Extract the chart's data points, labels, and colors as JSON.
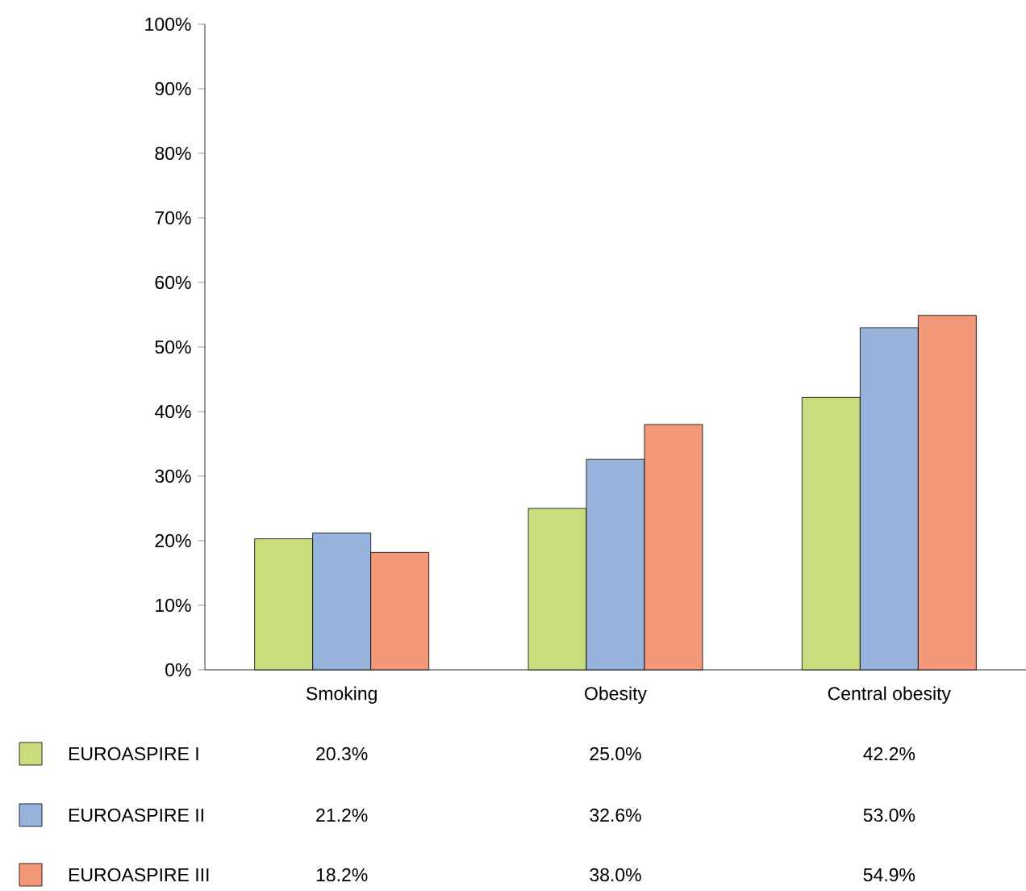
{
  "chart_data": {
    "type": "bar",
    "categories": [
      "Smoking",
      "Obesity",
      "Central obesity"
    ],
    "series": [
      {
        "name": "EUROASPIRE I",
        "color": "#c9dc7e",
        "values": [
          20.3,
          25.0,
          42.2
        ],
        "value_labels": [
          "20.3%",
          "25.0%",
          "42.2%"
        ]
      },
      {
        "name": "EUROASPIRE II",
        "color": "#98b3dc",
        "values": [
          21.2,
          32.6,
          53.0
        ],
        "value_labels": [
          "21.2%",
          "32.6%",
          "53.0%"
        ]
      },
      {
        "name": "EUROASPIRE III",
        "color": "#f4987a",
        "values": [
          18.2,
          38.0,
          54.9
        ],
        "value_labels": [
          "18.2%",
          "38.0%",
          "54.9%"
        ]
      }
    ],
    "ylim": [
      0,
      100
    ],
    "yticks": [
      {
        "value": 0,
        "label": "0%"
      },
      {
        "value": 10,
        "label": "10%"
      },
      {
        "value": 20,
        "label": "20%"
      },
      {
        "value": 30,
        "label": "30%"
      },
      {
        "value": 40,
        "label": "40%"
      },
      {
        "value": 50,
        "label": "50%"
      },
      {
        "value": 60,
        "label": "60%"
      },
      {
        "value": 70,
        "label": "70%"
      },
      {
        "value": 80,
        "label": "80%"
      },
      {
        "value": 90,
        "label": "90%"
      },
      {
        "value": 100,
        "label": "100%"
      }
    ],
    "legend": "bottom"
  }
}
